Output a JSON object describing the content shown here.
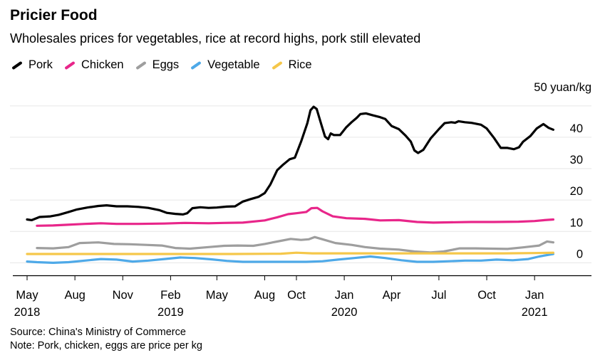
{
  "header": {
    "title": "Pricier Food",
    "subtitle": "Wholesales prices for vegetables, rice at record highs, pork still elevated"
  },
  "footer": {
    "source": "Source: China's Ministry of Commerce",
    "note": "Note: Pork, chicken, eggs are price per kg"
  },
  "chart_data": {
    "type": "line",
    "y_unit_label": "50 yuan/kg",
    "ylim": [
      -4,
      52
    ],
    "y_ticks": [
      0,
      10,
      20,
      30,
      40,
      50
    ],
    "y_tick_labels": [
      "0",
      "10",
      "20",
      "30",
      "40",
      ""
    ],
    "xlim": [
      "2018-05-01",
      "2021-02-15"
    ],
    "x_ticks": [
      {
        "date": "2018-05-01",
        "label": "May",
        "year": "2018"
      },
      {
        "date": "2018-08-01",
        "label": "Aug",
        "year": ""
      },
      {
        "date": "2018-11-01",
        "label": "Nov",
        "year": ""
      },
      {
        "date": "2019-02-01",
        "label": "Feb",
        "year": "2019"
      },
      {
        "date": "2019-05-01",
        "label": "May",
        "year": ""
      },
      {
        "date": "2019-08-01",
        "label": "Aug",
        "year": ""
      },
      {
        "date": "2019-10-01",
        "label": "Oct",
        "year": ""
      },
      {
        "date": "2020-01-01",
        "label": "Jan",
        "year": "2020"
      },
      {
        "date": "2020-04-01",
        "label": "Apr",
        "year": ""
      },
      {
        "date": "2020-07-01",
        "label": "Jul",
        "year": ""
      },
      {
        "date": "2020-10-01",
        "label": "Oct",
        "year": ""
      },
      {
        "date": "2021-01-01",
        "label": "Jan",
        "year": "2021"
      }
    ],
    "grid": true,
    "legend_position": "top-left",
    "series": [
      {
        "name": "Pork",
        "color": "#000000",
        "points": [
          [
            "2018-05-01",
            13.8
          ],
          [
            "2018-05-10",
            13.6
          ],
          [
            "2018-05-25",
            14.6
          ],
          [
            "2018-06-15",
            14.8
          ],
          [
            "2018-07-01",
            15.3
          ],
          [
            "2018-07-20",
            16.2
          ],
          [
            "2018-08-05",
            17.0
          ],
          [
            "2018-08-25",
            17.6
          ],
          [
            "2018-09-15",
            18.1
          ],
          [
            "2018-10-01",
            18.3
          ],
          [
            "2018-10-20",
            18.0
          ],
          [
            "2018-11-10",
            18.0
          ],
          [
            "2018-12-01",
            17.8
          ],
          [
            "2018-12-20",
            17.5
          ],
          [
            "2019-01-10",
            16.8
          ],
          [
            "2019-01-25",
            15.9
          ],
          [
            "2019-02-10",
            15.6
          ],
          [
            "2019-02-25",
            15.4
          ],
          [
            "2019-03-05",
            15.8
          ],
          [
            "2019-03-15",
            17.4
          ],
          [
            "2019-03-30",
            17.7
          ],
          [
            "2019-04-15",
            17.5
          ],
          [
            "2019-05-01",
            17.6
          ],
          [
            "2019-05-20",
            17.9
          ],
          [
            "2019-06-05",
            18.0
          ],
          [
            "2019-06-20",
            19.5
          ],
          [
            "2019-07-05",
            20.3
          ],
          [
            "2019-07-20",
            21.0
          ],
          [
            "2019-08-01",
            22.2
          ],
          [
            "2019-08-12",
            25.0
          ],
          [
            "2019-08-25",
            29.5
          ],
          [
            "2019-09-05",
            31.2
          ],
          [
            "2019-09-18",
            33.0
          ],
          [
            "2019-09-28",
            33.5
          ],
          [
            "2019-10-10",
            38.6
          ],
          [
            "2019-10-22",
            44.5
          ],
          [
            "2019-10-28",
            48.6
          ],
          [
            "2019-11-03",
            49.7
          ],
          [
            "2019-11-09",
            49.0
          ],
          [
            "2019-11-18",
            44.0
          ],
          [
            "2019-11-25",
            40.2
          ],
          [
            "2019-12-01",
            39.4
          ],
          [
            "2019-12-06",
            41.2
          ],
          [
            "2019-12-12",
            40.7
          ],
          [
            "2019-12-24",
            40.7
          ],
          [
            "2020-01-05",
            43.2
          ],
          [
            "2020-01-15",
            44.8
          ],
          [
            "2020-01-25",
            46.2
          ],
          [
            "2020-02-01",
            47.4
          ],
          [
            "2020-02-12",
            47.6
          ],
          [
            "2020-02-25",
            47.0
          ],
          [
            "2020-03-10",
            46.4
          ],
          [
            "2020-03-20",
            45.8
          ],
          [
            "2020-04-01",
            43.6
          ],
          [
            "2020-04-15",
            42.6
          ],
          [
            "2020-04-28",
            40.5
          ],
          [
            "2020-05-08",
            38.6
          ],
          [
            "2020-05-15",
            35.8
          ],
          [
            "2020-05-22",
            35.0
          ],
          [
            "2020-06-01",
            36.0
          ],
          [
            "2020-06-15",
            39.6
          ],
          [
            "2020-07-01",
            42.6
          ],
          [
            "2020-07-12",
            44.5
          ],
          [
            "2020-07-25",
            44.8
          ],
          [
            "2020-08-01",
            44.6
          ],
          [
            "2020-08-08",
            45.1
          ],
          [
            "2020-08-20",
            44.8
          ],
          [
            "2020-09-01",
            44.6
          ],
          [
            "2020-09-20",
            44.0
          ],
          [
            "2020-10-01",
            42.8
          ],
          [
            "2020-10-15",
            39.8
          ],
          [
            "2020-10-28",
            36.6
          ],
          [
            "2020-11-10",
            36.6
          ],
          [
            "2020-11-22",
            36.2
          ],
          [
            "2020-12-02",
            36.8
          ],
          [
            "2020-12-10",
            38.6
          ],
          [
            "2020-12-24",
            40.4
          ],
          [
            "2021-01-05",
            42.8
          ],
          [
            "2021-01-18",
            44.2
          ],
          [
            "2021-01-28",
            43.0
          ],
          [
            "2021-02-06",
            42.4
          ]
        ]
      },
      {
        "name": "Chicken",
        "color": "#e8268a",
        "points": [
          [
            "2018-05-20",
            11.8
          ],
          [
            "2018-06-20",
            11.9
          ],
          [
            "2018-07-15",
            12.1
          ],
          [
            "2018-08-20",
            12.4
          ],
          [
            "2018-09-20",
            12.6
          ],
          [
            "2018-10-20",
            12.4
          ],
          [
            "2018-12-01",
            12.4
          ],
          [
            "2019-01-20",
            12.5
          ],
          [
            "2019-03-01",
            12.7
          ],
          [
            "2019-04-15",
            12.6
          ],
          [
            "2019-05-15",
            12.7
          ],
          [
            "2019-06-20",
            12.8
          ],
          [
            "2019-08-01",
            13.5
          ],
          [
            "2019-08-25",
            14.5
          ],
          [
            "2019-09-15",
            15.5
          ],
          [
            "2019-10-01",
            15.8
          ],
          [
            "2019-10-20",
            16.2
          ],
          [
            "2019-10-30",
            17.4
          ],
          [
            "2019-11-10",
            17.5
          ],
          [
            "2019-11-20",
            16.4
          ],
          [
            "2019-12-10",
            14.8
          ],
          [
            "2020-01-05",
            14.2
          ],
          [
            "2020-02-10",
            14.0
          ],
          [
            "2020-03-10",
            13.5
          ],
          [
            "2020-04-15",
            13.6
          ],
          [
            "2020-05-20",
            13.0
          ],
          [
            "2020-06-20",
            12.8
          ],
          [
            "2020-07-20",
            12.9
          ],
          [
            "2020-09-01",
            13.0
          ],
          [
            "2020-10-15",
            13.0
          ],
          [
            "2020-12-01",
            13.1
          ],
          [
            "2021-01-01",
            13.3
          ],
          [
            "2021-01-20",
            13.6
          ],
          [
            "2021-02-06",
            13.8
          ]
        ]
      },
      {
        "name": "Eggs",
        "color": "#9e9e9e",
        "points": [
          [
            "2018-05-20",
            4.7
          ],
          [
            "2018-06-20",
            4.6
          ],
          [
            "2018-07-20",
            5.0
          ],
          [
            "2018-08-10",
            6.3
          ],
          [
            "2018-09-15",
            6.5
          ],
          [
            "2018-10-15",
            6.0
          ],
          [
            "2018-11-15",
            5.9
          ],
          [
            "2018-12-15",
            5.7
          ],
          [
            "2019-01-15",
            5.5
          ],
          [
            "2019-02-10",
            4.7
          ],
          [
            "2019-03-10",
            4.5
          ],
          [
            "2019-04-15",
            5.0
          ],
          [
            "2019-05-15",
            5.4
          ],
          [
            "2019-06-10",
            5.5
          ],
          [
            "2019-07-10",
            5.4
          ],
          [
            "2019-08-01",
            6.0
          ],
          [
            "2019-09-01",
            7.0
          ],
          [
            "2019-09-20",
            7.6
          ],
          [
            "2019-10-10",
            7.3
          ],
          [
            "2019-10-25",
            7.5
          ],
          [
            "2019-11-05",
            8.2
          ],
          [
            "2019-11-20",
            7.5
          ],
          [
            "2019-12-15",
            6.3
          ],
          [
            "2020-01-15",
            5.7
          ],
          [
            "2020-02-10",
            5.0
          ],
          [
            "2020-03-10",
            4.5
          ],
          [
            "2020-04-15",
            4.2
          ],
          [
            "2020-05-15",
            3.6
          ],
          [
            "2020-06-15",
            3.3
          ],
          [
            "2020-07-10",
            3.6
          ],
          [
            "2020-08-10",
            4.6
          ],
          [
            "2020-09-10",
            4.6
          ],
          [
            "2020-10-10",
            4.5
          ],
          [
            "2020-11-10",
            4.4
          ],
          [
            "2020-12-10",
            4.9
          ],
          [
            "2021-01-10",
            5.5
          ],
          [
            "2021-01-25",
            6.8
          ],
          [
            "2021-02-06",
            6.5
          ]
        ]
      },
      {
        "name": "Vegetable",
        "color": "#4ea9e8",
        "points": [
          [
            "2018-05-01",
            0.4
          ],
          [
            "2018-05-20",
            0.2
          ],
          [
            "2018-06-20",
            0.0
          ],
          [
            "2018-07-20",
            0.2
          ],
          [
            "2018-08-20",
            0.7
          ],
          [
            "2018-09-20",
            1.2
          ],
          [
            "2018-10-20",
            1.0
          ],
          [
            "2018-11-20",
            0.4
          ],
          [
            "2018-12-20",
            0.7
          ],
          [
            "2019-01-20",
            1.2
          ],
          [
            "2019-02-20",
            1.7
          ],
          [
            "2019-03-20",
            1.5
          ],
          [
            "2019-04-20",
            1.1
          ],
          [
            "2019-05-20",
            0.6
          ],
          [
            "2019-06-20",
            0.3
          ],
          [
            "2019-07-20",
            0.3
          ],
          [
            "2019-08-20",
            0.3
          ],
          [
            "2019-09-20",
            0.3
          ],
          [
            "2019-10-20",
            0.3
          ],
          [
            "2019-11-20",
            0.5
          ],
          [
            "2019-12-20",
            1.0
          ],
          [
            "2020-01-20",
            1.5
          ],
          [
            "2020-02-20",
            2.0
          ],
          [
            "2020-03-20",
            1.5
          ],
          [
            "2020-04-20",
            0.8
          ],
          [
            "2020-05-20",
            0.3
          ],
          [
            "2020-06-20",
            0.3
          ],
          [
            "2020-07-20",
            0.5
          ],
          [
            "2020-08-20",
            0.7
          ],
          [
            "2020-09-20",
            0.7
          ],
          [
            "2020-10-20",
            1.0
          ],
          [
            "2020-11-20",
            0.8
          ],
          [
            "2020-12-20",
            1.2
          ],
          [
            "2021-01-10",
            2.0
          ],
          [
            "2021-02-06",
            2.8
          ]
        ]
      },
      {
        "name": "Rice",
        "color": "#f5c74a",
        "points": [
          [
            "2018-05-01",
            2.8
          ],
          [
            "2018-09-01",
            2.8
          ],
          [
            "2019-01-01",
            2.8
          ],
          [
            "2019-06-01",
            2.8
          ],
          [
            "2019-09-01",
            2.9
          ],
          [
            "2019-10-01",
            3.2
          ],
          [
            "2019-11-01",
            3.0
          ],
          [
            "2019-12-01",
            3.0
          ],
          [
            "2020-03-01",
            3.0
          ],
          [
            "2020-07-01",
            3.0
          ],
          [
            "2020-11-01",
            3.0
          ],
          [
            "2021-01-01",
            3.1
          ],
          [
            "2021-02-06",
            3.2
          ]
        ]
      }
    ]
  }
}
